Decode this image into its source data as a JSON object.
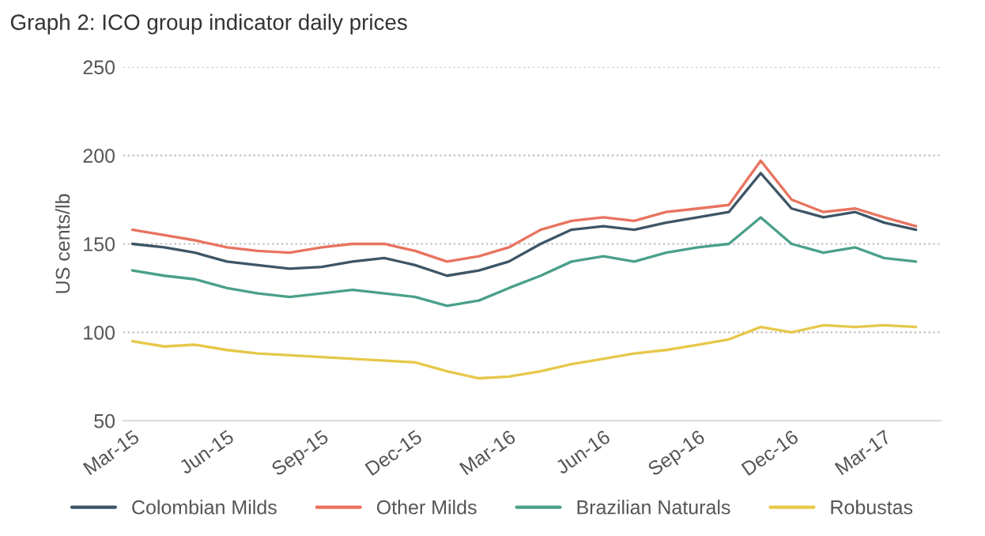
{
  "chart_data": {
    "type": "line",
    "title": "Graph 2: ICO group indicator daily prices",
    "ylabel": "US cents/lb",
    "x": [
      "2015-03-01",
      "2015-04-01",
      "2015-05-01",
      "2015-06-01",
      "2015-07-01",
      "2015-08-01",
      "2015-09-01",
      "2015-10-01",
      "2015-11-01",
      "2015-12-01",
      "2016-01-01",
      "2016-02-01",
      "2016-03-01",
      "2016-04-01",
      "2016-05-01",
      "2016-06-01",
      "2016-07-01",
      "2016-08-01",
      "2016-09-01",
      "2016-10-01",
      "2016-11-01",
      "2016-12-01",
      "2017-01-01",
      "2017-02-01",
      "2017-03-01",
      "2017-04-01"
    ],
    "series": [
      {
        "name": "Colombian Milds",
        "color": "#3d5566",
        "values": [
          150,
          148,
          145,
          140,
          138,
          136,
          137,
          140,
          142,
          138,
          132,
          135,
          140,
          150,
          158,
          160,
          158,
          162,
          165,
          168,
          190,
          170,
          165,
          168,
          162,
          158
        ]
      },
      {
        "name": "Other Milds",
        "color": "#e8735f",
        "values": [
          158,
          155,
          152,
          148,
          146,
          145,
          148,
          150,
          150,
          146,
          140,
          143,
          148,
          158,
          163,
          165,
          163,
          168,
          170,
          172,
          197,
          175,
          168,
          170,
          165,
          160
        ]
      },
      {
        "name": "Brazilian Naturals",
        "color": "#4aa08a",
        "values": [
          135,
          132,
          130,
          125,
          122,
          120,
          122,
          124,
          122,
          120,
          115,
          118,
          125,
          132,
          140,
          143,
          140,
          145,
          148,
          150,
          165,
          150,
          145,
          148,
          142,
          140
        ]
      },
      {
        "name": "Robustas",
        "color": "#e6c84a",
        "values": [
          95,
          92,
          93,
          90,
          88,
          87,
          86,
          85,
          84,
          83,
          78,
          74,
          75,
          78,
          82,
          85,
          88,
          90,
          93,
          96,
          103,
          100,
          104,
          103,
          104,
          103
        ]
      }
    ],
    "xlim": [
      "2015-02-20",
      "2017-04-25"
    ],
    "xticks": [
      {
        "value": "2015-03-01",
        "label": "Mar-15"
      },
      {
        "value": "2015-06-01",
        "label": "Jun-15"
      },
      {
        "value": "2015-09-01",
        "label": "Sep-15"
      },
      {
        "value": "2015-12-01",
        "label": "Dec-15"
      },
      {
        "value": "2016-03-01",
        "label": "Mar-16"
      },
      {
        "value": "2016-06-01",
        "label": "Jun-16"
      },
      {
        "value": "2016-09-01",
        "label": "Sep-16"
      },
      {
        "value": "2016-12-01",
        "label": "Dec-16"
      },
      {
        "value": "2017-03-01",
        "label": "Mar-17"
      }
    ],
    "ylim": [
      50,
      250
    ],
    "yticks": [
      50,
      100,
      150,
      200,
      250
    ],
    "grid": "y",
    "legend": "bottom",
    "marker": "none",
    "line_style": "solid"
  }
}
